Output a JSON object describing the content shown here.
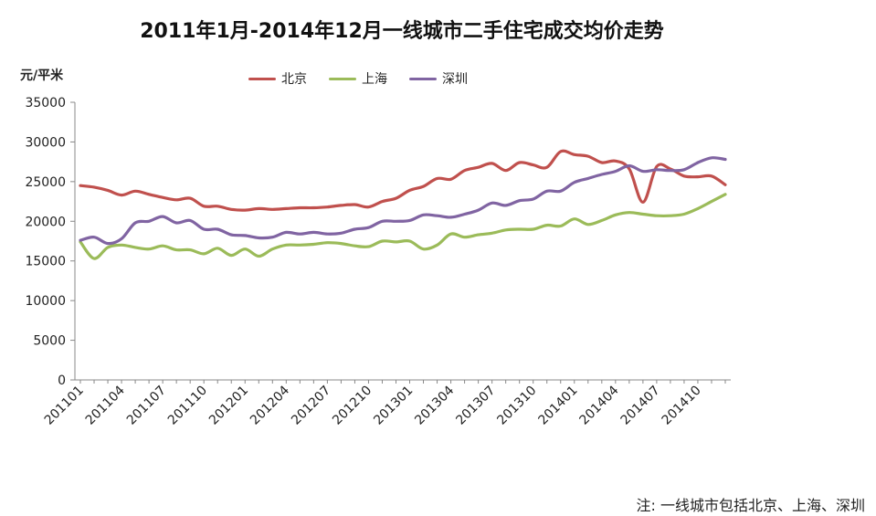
{
  "chart_data": {
    "type": "line",
    "title": "2011年1月-2014年12月一线城市二手住宅成交均价走势",
    "ylabel": "元/平米",
    "note": "注:  一线城市包括北京、上海、深圳",
    "ylim": [
      0,
      35000
    ],
    "yticks": [
      0,
      5000,
      10000,
      15000,
      20000,
      25000,
      30000,
      35000
    ],
    "xtick_labels": [
      "201101",
      "201104",
      "201107",
      "201110",
      "201201",
      "201204",
      "201207",
      "201210",
      "201301",
      "201304",
      "201307",
      "201310",
      "201401",
      "201404",
      "201407",
      "201410"
    ],
    "legend_position": "top",
    "x": [
      "201101",
      "201102",
      "201103",
      "201104",
      "201105",
      "201106",
      "201107",
      "201108",
      "201109",
      "201110",
      "201111",
      "201112",
      "201201",
      "201202",
      "201203",
      "201204",
      "201205",
      "201206",
      "201207",
      "201208",
      "201209",
      "201210",
      "201211",
      "201212",
      "201301",
      "201302",
      "201303",
      "201304",
      "201305",
      "201306",
      "201307",
      "201308",
      "201309",
      "201310",
      "201311",
      "201312",
      "201401",
      "201402",
      "201403",
      "201404",
      "201405",
      "201406",
      "201407",
      "201408",
      "201409",
      "201410",
      "201411",
      "201412"
    ],
    "series": [
      {
        "name": "北京",
        "color": "#c0504d",
        "values": [
          24500,
          24300,
          23900,
          23300,
          23800,
          23400,
          23000,
          22700,
          22900,
          21900,
          21900,
          21500,
          21400,
          21600,
          21500,
          21600,
          21700,
          21700,
          21800,
          22000,
          22100,
          21800,
          22500,
          22900,
          23900,
          24400,
          25400,
          25300,
          26400,
          26800,
          27300,
          26400,
          27400,
          27100,
          26800,
          28800,
          28400,
          28200,
          27400,
          27600,
          26600,
          22400,
          26900,
          26600,
          25700,
          25600,
          25700,
          24600
        ]
      },
      {
        "name": "上海",
        "color": "#9bbb59",
        "values": [
          17400,
          15300,
          16700,
          17000,
          16700,
          16500,
          16900,
          16400,
          16400,
          15900,
          16600,
          15700,
          16500,
          15600,
          16500,
          17000,
          17000,
          17100,
          17300,
          17200,
          16900,
          16800,
          17500,
          17400,
          17500,
          16500,
          17000,
          18400,
          18000,
          18300,
          18500,
          18900,
          19000,
          19000,
          19500,
          19400,
          20300,
          19600,
          20100,
          20800,
          21100,
          20900,
          20700,
          20700,
          20900,
          21600,
          22500,
          23400
        ]
      },
      {
        "name": "深圳",
        "color": "#8064a2",
        "values": [
          17600,
          18000,
          17200,
          17800,
          19800,
          20000,
          20600,
          19800,
          20100,
          19000,
          19000,
          18300,
          18200,
          17900,
          18000,
          18600,
          18400,
          18600,
          18400,
          18500,
          19000,
          19200,
          20000,
          20000,
          20100,
          20800,
          20700,
          20500,
          20900,
          21400,
          22300,
          22000,
          22600,
          22800,
          23800,
          23800,
          24900,
          25400,
          25900,
          26300,
          27000,
          26300,
          26500,
          26400,
          26500,
          27400,
          28000,
          27800
        ]
      }
    ]
  }
}
